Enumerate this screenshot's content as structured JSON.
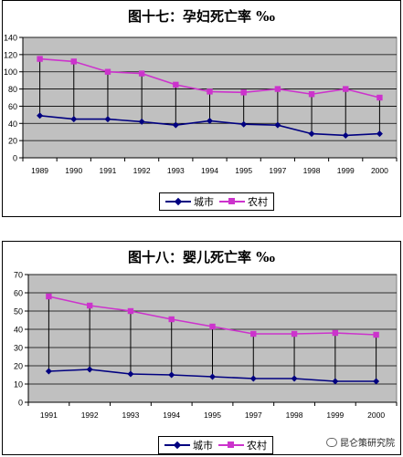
{
  "chart_data": [
    {
      "type": "line",
      "title": "图十七：孕妇死亡率 ‰",
      "categories": [
        "1989",
        "1990",
        "1991",
        "1992",
        "1993",
        "1994",
        "1995",
        "1997",
        "1998",
        "1999",
        "2000"
      ],
      "series": [
        {
          "name": "城市",
          "values": [
            49,
            45,
            45,
            42,
            38,
            43,
            39,
            38,
            28,
            26,
            28
          ]
        },
        {
          "name": "农村",
          "values": [
            115,
            112,
            100,
            98,
            85,
            77,
            76,
            80,
            74,
            80,
            70
          ]
        }
      ],
      "ylim": [
        0,
        140
      ],
      "yticks": [
        0,
        20,
        40,
        60,
        80,
        100,
        120,
        140
      ],
      "grid": true,
      "legend": "bottom",
      "colors": {
        "城市": "#000080",
        "农村": "#cc33cc"
      }
    },
    {
      "type": "line",
      "title": "图十八：婴儿死亡率 ‰",
      "categories": [
        "1991",
        "1992",
        "1993",
        "1994",
        "1995",
        "1997",
        "1998",
        "1999",
        "2000"
      ],
      "series": [
        {
          "name": "城市",
          "values": [
            17,
            18,
            15.5,
            15,
            14,
            13,
            13,
            11.5,
            11.5
          ]
        },
        {
          "name": "农村",
          "values": [
            58,
            53,
            50,
            45.5,
            41.5,
            37.5,
            37.5,
            38,
            37
          ]
        }
      ],
      "ylim": [
        0,
        70
      ],
      "yticks": [
        0,
        10,
        20,
        30,
        40,
        50,
        60,
        70
      ],
      "grid": true,
      "legend": "bottom",
      "colors": {
        "城市": "#000080",
        "农村": "#cc33cc"
      }
    }
  ],
  "watermark": "昆仑策研究院",
  "colors": {
    "plot_bg": "#c0c0c0",
    "city": "#000080",
    "rural": "#cc33cc"
  }
}
